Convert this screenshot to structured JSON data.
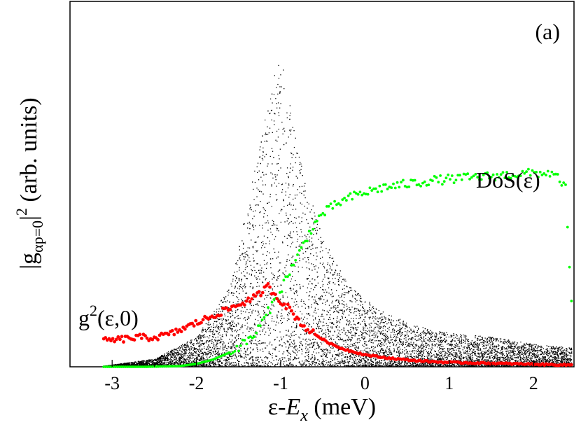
{
  "chart_data": {
    "type": "scatter",
    "panel_label": "(a)",
    "xlabel": {
      "base": "ε-",
      "italic": "E",
      "sub": "x",
      "units": " (meV)"
    },
    "ylabel": {
      "open": "|g",
      "sub": "αp=0",
      "close": "|",
      "sup": "2",
      "units": " (arb. units)"
    },
    "xlim": [
      -3.5,
      2.48
    ],
    "ylim": [
      0,
      1
    ],
    "grid": false,
    "x_ticks": [
      {
        "value": -3,
        "label": "-3"
      },
      {
        "value": -2,
        "label": "-2"
      },
      {
        "value": -1,
        "label": "-1"
      },
      {
        "value": 0,
        "label": "0"
      },
      {
        "value": 1,
        "label": "1"
      },
      {
        "value": 2,
        "label": "2"
      }
    ],
    "annotations": [
      {
        "id": "dos",
        "text": "DoS(ε)"
      },
      {
        "id": "g2",
        "base": "g",
        "sup": "2",
        "rest": "(ε,0)"
      }
    ],
    "series": [
      {
        "id": "scatter",
        "color": "#000000",
        "points_count": 9000,
        "envelope_x": [
          -3.1,
          -2.5,
          -2.0,
          -1.6,
          -1.3,
          -1.1,
          -1.0,
          -0.9,
          -0.7,
          -0.5,
          -0.2,
          0.2,
          0.6,
          1.0,
          1.5,
          2.0,
          2.45
        ],
        "envelope_max": [
          0.0,
          0.02,
          0.08,
          0.22,
          0.55,
          0.78,
          0.85,
          0.72,
          0.5,
          0.35,
          0.22,
          0.15,
          0.11,
          0.09,
          0.08,
          0.06,
          0.05
        ]
      },
      {
        "id": "g2",
        "color": "#ff0000",
        "x": [
          -3.1,
          -2.9,
          -2.7,
          -2.5,
          -2.3,
          -2.1,
          -1.9,
          -1.7,
          -1.5,
          -1.3,
          -1.15,
          -1.0,
          -0.9,
          -0.8,
          -0.7,
          -0.6,
          -0.5,
          -0.4,
          -0.3,
          -0.2,
          -0.1,
          0.0,
          0.2,
          0.4,
          0.6,
          0.8,
          1.0,
          1.2,
          1.4,
          1.6,
          1.8,
          2.0,
          2.2,
          2.45
        ],
        "y": [
          0.07,
          0.075,
          0.08,
          0.08,
          0.09,
          0.11,
          0.13,
          0.15,
          0.17,
          0.19,
          0.22,
          0.18,
          0.16,
          0.13,
          0.105,
          0.09,
          0.075,
          0.062,
          0.052,
          0.045,
          0.039,
          0.033,
          0.026,
          0.021,
          0.017,
          0.014,
          0.012,
          0.011,
          0.01,
          0.009,
          0.008,
          0.007,
          0.006,
          0.005
        ]
      },
      {
        "id": "dos",
        "color": "#00ff00",
        "x": [
          -3.1,
          -2.6,
          -2.2,
          -2.0,
          -1.8,
          -1.6,
          -1.4,
          -1.3,
          -1.2,
          -1.1,
          -1.0,
          -0.9,
          -0.8,
          -0.7,
          -0.6,
          -0.5,
          -0.3,
          -0.1,
          0.2,
          0.5,
          0.8,
          1.1,
          1.4,
          1.7,
          2.0,
          2.2,
          2.38,
          2.42,
          2.45
        ],
        "y": [
          0.0,
          0.0,
          0.002,
          0.008,
          0.02,
          0.04,
          0.07,
          0.09,
          0.13,
          0.17,
          0.21,
          0.26,
          0.3,
          0.35,
          0.39,
          0.42,
          0.45,
          0.47,
          0.49,
          0.5,
          0.51,
          0.515,
          0.52,
          0.525,
          0.53,
          0.53,
          0.5,
          0.3,
          0.18
        ]
      }
    ]
  }
}
